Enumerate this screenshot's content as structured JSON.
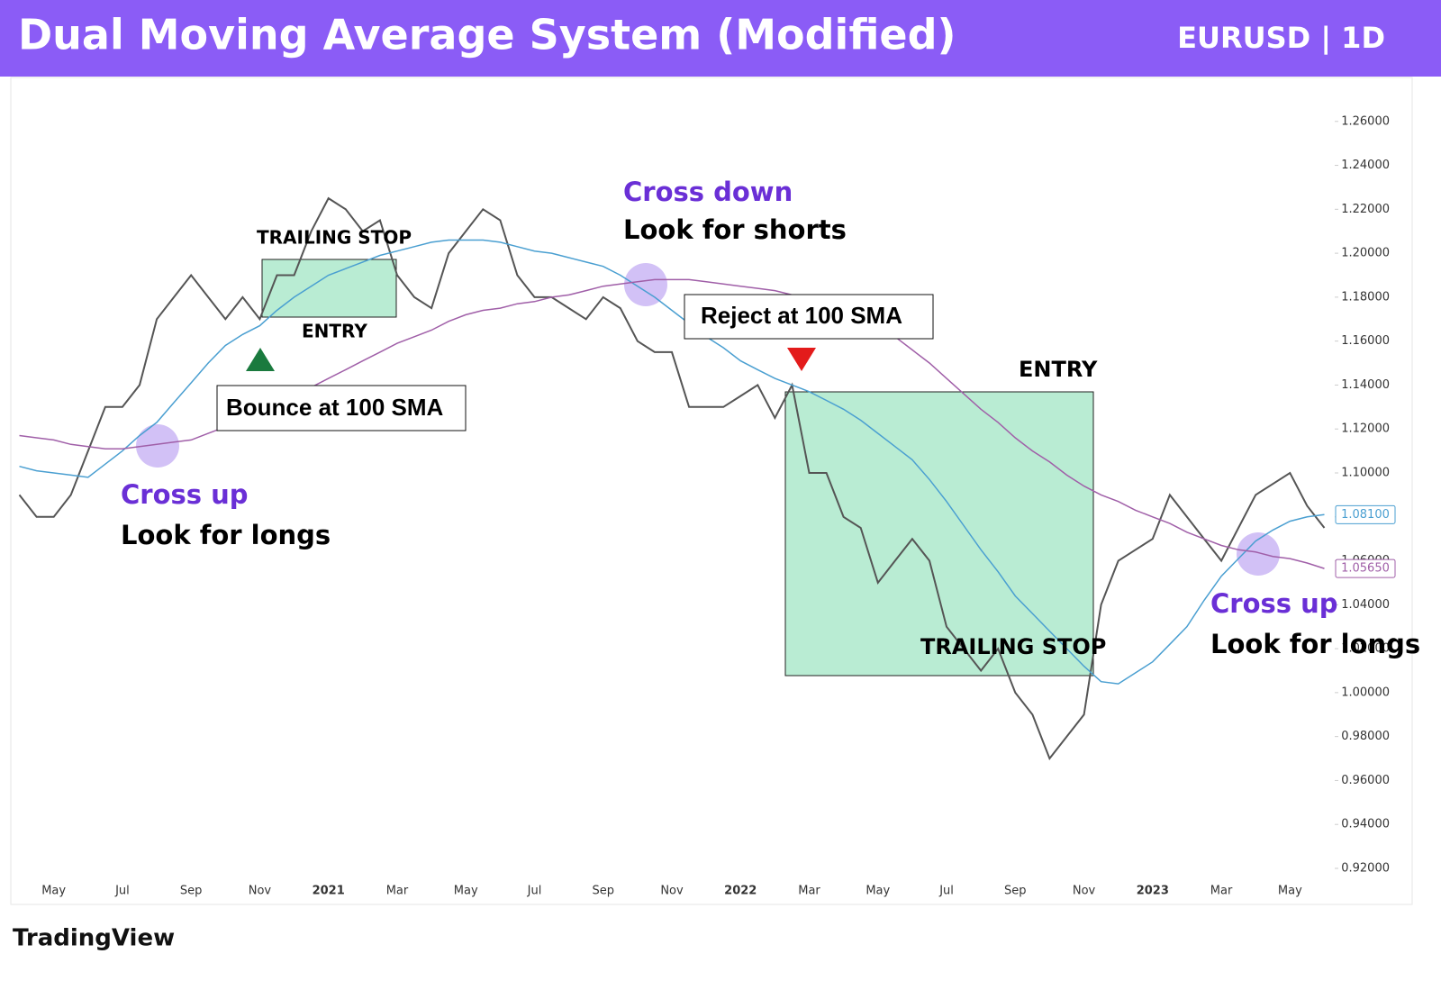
{
  "chart_data": {
    "type": "line",
    "title": "Dual Moving Average System (Modified)",
    "subtitle": "EURUSD | 1D",
    "brand": "TradingView",
    "categories": [
      null,
      null,
      "May",
      null,
      null,
      null,
      "Jul",
      null,
      null,
      null,
      "Sep",
      null,
      null,
      null,
      "Nov",
      null,
      null,
      null,
      "2021",
      null,
      null,
      null,
      "Mar",
      null,
      null,
      null,
      "May",
      null,
      null,
      null,
      "Jul",
      null,
      null,
      null,
      "Sep",
      null,
      null,
      null,
      "Nov",
      null,
      null,
      null,
      "2022",
      null,
      null,
      null,
      "Mar",
      null,
      null,
      null,
      "May",
      null,
      null,
      null,
      "Jul",
      null,
      null,
      null,
      "Sep",
      null,
      null,
      null,
      "Nov",
      null,
      null,
      null,
      "2023",
      null,
      null,
      null,
      "Mar",
      null,
      null,
      null,
      "May",
      null,
      null
    ],
    "series": [
      {
        "color": "#555555",
        "values": [
          1.09,
          1.08,
          1.08,
          1.09,
          1.11,
          1.13,
          1.13,
          1.14,
          1.17,
          1.18,
          1.19,
          1.18,
          1.17,
          1.18,
          1.17,
          1.19,
          1.19,
          1.21,
          1.225,
          1.22,
          1.21,
          1.215,
          1.19,
          1.18,
          1.175,
          1.2,
          1.21,
          1.22,
          1.215,
          1.19,
          1.18,
          1.18,
          1.175,
          1.17,
          1.18,
          1.175,
          1.16,
          1.155,
          1.155,
          1.13,
          1.13,
          1.13,
          1.135,
          1.14,
          1.125,
          1.14,
          1.1,
          1.1,
          1.08,
          1.075,
          1.05,
          1.06,
          1.07,
          1.06,
          1.03,
          1.02,
          1.01,
          1.02,
          1.0,
          0.99,
          0.97,
          0.98,
          0.99,
          1.04,
          1.06,
          1.065,
          1.07,
          1.09,
          1.08,
          1.07,
          1.06,
          1.075,
          1.09,
          1.095,
          1.1,
          1.085,
          1.075
        ]
      },
      {
        "color": "#4a9fd1",
        "values": [
          1.103,
          1.101,
          1.1,
          1.099,
          1.098,
          1.104,
          1.11,
          1.117,
          1.123,
          1.132,
          1.141,
          1.15,
          1.158,
          1.163,
          1.167,
          1.174,
          1.18,
          1.185,
          1.19,
          1.193,
          1.196,
          1.199,
          1.201,
          1.203,
          1.205,
          1.206,
          1.206,
          1.206,
          1.205,
          1.203,
          1.201,
          1.2,
          1.198,
          1.196,
          1.194,
          1.19,
          1.185,
          1.18,
          1.174,
          1.168,
          1.162,
          1.157,
          1.151,
          1.147,
          1.143,
          1.14,
          1.137,
          1.133,
          1.129,
          1.124,
          1.118,
          1.112,
          1.106,
          1.097,
          1.087,
          1.076,
          1.065,
          1.055,
          1.044,
          1.036,
          1.028,
          1.02,
          1.012,
          1.005,
          1.004,
          1.009,
          1.014,
          1.022,
          1.03,
          1.042,
          1.053,
          1.061,
          1.069,
          1.074,
          1.078,
          1.08,
          1.081
        ]
      },
      {
        "color": "#a05fa8",
        "values": [
          1.117,
          1.116,
          1.115,
          1.113,
          1.112,
          1.111,
          1.111,
          1.112,
          1.113,
          1.114,
          1.115,
          1.118,
          1.121,
          1.124,
          1.127,
          1.131,
          1.135,
          1.139,
          1.143,
          1.147,
          1.151,
          1.155,
          1.159,
          1.162,
          1.165,
          1.169,
          1.172,
          1.174,
          1.175,
          1.177,
          1.178,
          1.18,
          1.181,
          1.183,
          1.185,
          1.186,
          1.187,
          1.188,
          1.188,
          1.188,
          1.187,
          1.186,
          1.185,
          1.184,
          1.183,
          1.181,
          1.18,
          1.177,
          1.174,
          1.171,
          1.168,
          1.162,
          1.156,
          1.15,
          1.143,
          1.136,
          1.129,
          1.123,
          1.116,
          1.11,
          1.105,
          1.099,
          1.094,
          1.09,
          1.087,
          1.083,
          1.08,
          1.077,
          1.073,
          1.07,
          1.067,
          1.065,
          1.064,
          1.062,
          1.061,
          1.059,
          1.0565
        ]
      }
    ],
    "price_labels": [
      {
        "value": 1.081,
        "label": "1.08100",
        "color": "#4a9fd1"
      },
      {
        "value": 1.0565,
        "label": "1.05650",
        "color": "#a05fa8"
      }
    ],
    "ylim": [
      0.904,
      1.28
    ],
    "yticks": [
      {
        "value": 0.92,
        "label": "0.92000"
      },
      {
        "value": 0.94,
        "label": "0.94000"
      },
      {
        "value": 0.96,
        "label": "0.96000"
      },
      {
        "value": 0.98,
        "label": "0.98000"
      },
      {
        "value": 1.0,
        "label": "1.00000"
      },
      {
        "value": 1.02,
        "label": "1.02000"
      },
      {
        "value": 1.04,
        "label": "1.04000"
      },
      {
        "value": 1.06,
        "label": "1.06000"
      },
      {
        "value": 1.08,
        "label": "1.08000"
      },
      {
        "value": 1.1,
        "label": "1.10000"
      },
      {
        "value": 1.12,
        "label": "1.12000"
      },
      {
        "value": 1.14,
        "label": "1.14000"
      },
      {
        "value": 1.16,
        "label": "1.16000"
      },
      {
        "value": 1.18,
        "label": "1.18000"
      },
      {
        "value": 1.2,
        "label": "1.20000"
      },
      {
        "value": 1.22,
        "label": "1.22000"
      },
      {
        "value": 1.24,
        "label": "1.24000"
      },
      {
        "value": 1.26,
        "label": "1.26000"
      }
    ],
    "annotations": {
      "cross_up_1": "Cross up",
      "longs_1": "Look for longs",
      "cross_down": "Cross down",
      "shorts": "Look for shorts",
      "cross_up_2": "Cross up",
      "longs_2": "Look for longs",
      "stop_1": "TRAILING STOP",
      "entry_1": "ENTRY",
      "bounce": "Bounce at 100 SMA",
      "reject": "Reject at 100 SMA",
      "entry_2": "ENTRY",
      "stop_2": "TRAILING STOP"
    }
  }
}
